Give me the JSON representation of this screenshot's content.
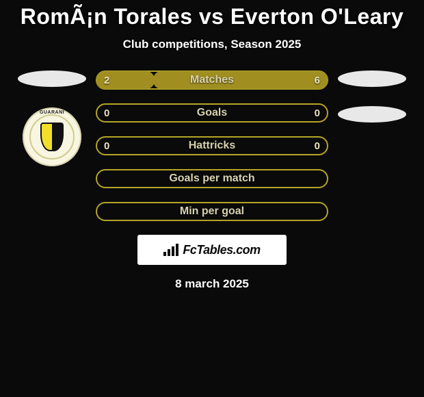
{
  "title": "RomÃ¡n Torales vs Everton O'Leary",
  "subtitle": "Club competitions, Season 2025",
  "date": "8 march 2025",
  "bar_border_color": "#b5a528",
  "bar_fill_color": "#a08f20",
  "bar_label_color": "#d8d2b0",
  "bg_color": "#0a0a0a",
  "footer_brand": "FcTables.com",
  "crest_text": "GUARANI",
  "rows": [
    {
      "label": "Matches",
      "left": "2",
      "right": "6",
      "left_pct": 25,
      "right_pct": 75
    },
    {
      "label": "Goals",
      "left": "0",
      "right": "0",
      "left_pct": 0,
      "right_pct": 0
    },
    {
      "label": "Hattricks",
      "left": "0",
      "right": "0",
      "left_pct": 0,
      "right_pct": 0
    },
    {
      "label": "Goals per match",
      "left": "",
      "right": "",
      "left_pct": 0,
      "right_pct": 0
    },
    {
      "label": "Min per goal",
      "left": "",
      "right": "",
      "left_pct": 0,
      "right_pct": 0
    }
  ]
}
